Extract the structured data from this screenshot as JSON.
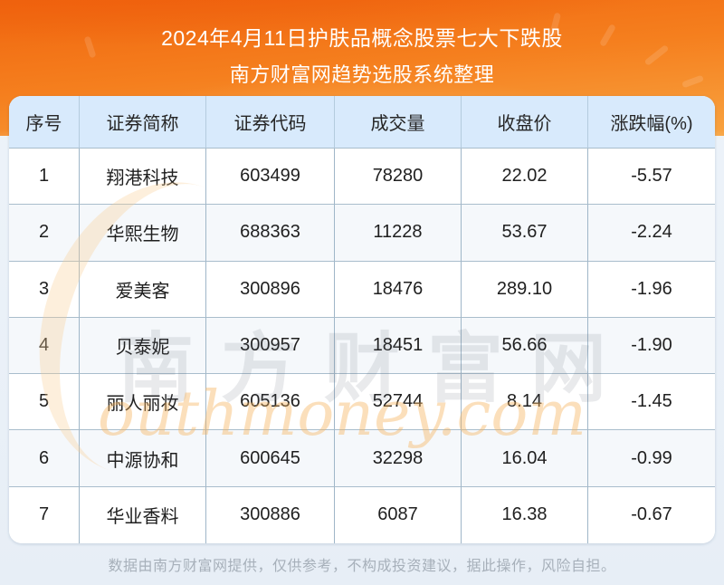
{
  "banner": {
    "title_line1": "2024年4月11日护肤品概念股票七大下跌股",
    "title_line2": "南方财富网趋势选股系统整理"
  },
  "table": {
    "headers": [
      "序号",
      "证券简称",
      "证券代码",
      "成交量",
      "收盘价",
      "涨跌幅(%)"
    ],
    "rows": [
      [
        "1",
        "翔港科技",
        "603499",
        "78280",
        "22.02",
        "-5.57"
      ],
      [
        "2",
        "华熙生物",
        "688363",
        "11228",
        "53.67",
        "-2.24"
      ],
      [
        "3",
        "爱美客",
        "300896",
        "18476",
        "289.10",
        "-1.96"
      ],
      [
        "4",
        "贝泰妮",
        "300957",
        "18451",
        "56.66",
        "-1.90"
      ],
      [
        "5",
        "丽人丽妆",
        "605136",
        "52744",
        "8.14",
        "-1.45"
      ],
      [
        "6",
        "中源协和",
        "600645",
        "32298",
        "16.04",
        "-0.99"
      ],
      [
        "7",
        "华业香料",
        "300886",
        "6087",
        "16.38",
        "-0.67"
      ]
    ]
  },
  "chart_data": {
    "type": "table",
    "title": "2024年4月11日护肤品概念股票七大下跌股",
    "subtitle": "南方财富网趋势选股系统整理",
    "columns": [
      "序号",
      "证券简称",
      "证券代码",
      "成交量",
      "收盘价",
      "涨跌幅(%)"
    ],
    "rows": [
      [
        1,
        "翔港科技",
        "603499",
        78280,
        22.02,
        -5.57
      ],
      [
        2,
        "华熙生物",
        "688363",
        11228,
        53.67,
        -2.24
      ],
      [
        3,
        "爱美客",
        "300896",
        18476,
        289.1,
        -1.96
      ],
      [
        4,
        "贝泰妮",
        "300957",
        18451,
        56.66,
        -1.9
      ],
      [
        5,
        "丽人丽妆",
        "605136",
        52744,
        8.14,
        -1.45
      ],
      [
        6,
        "中源协和",
        "600645",
        32298,
        16.04,
        -0.99
      ],
      [
        7,
        "华业香料",
        "300886",
        6087,
        16.38,
        -0.67
      ]
    ]
  },
  "watermark": {
    "cn": "南方财富网",
    "en": "outhmoney.com"
  },
  "footer": {
    "disclaimer": "数据由南方财富网提供，仅供参考，不构成投资建议，据此操作，风险自担。"
  },
  "colors": {
    "banner_orange_top": "#f0660f",
    "banner_orange_bottom": "#f8a340",
    "header_bg": "#d8eafc",
    "grid_line": "#9fb6c8",
    "row_alt_bg": "#f5f8fb",
    "page_bg": "#e9f0f7",
    "footer_text": "#a7b0ba"
  }
}
